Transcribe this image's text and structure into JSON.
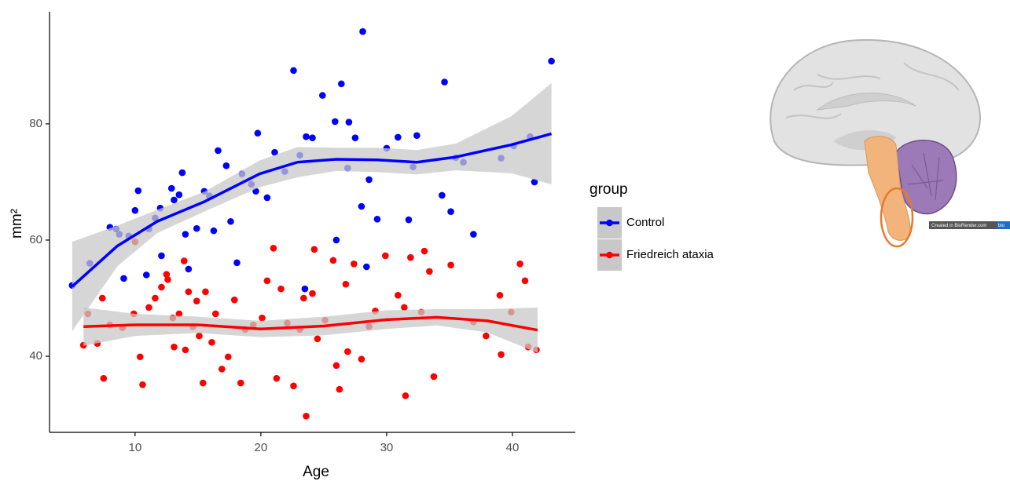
{
  "chart_data": {
    "type": "scatter",
    "x_label": "Age",
    "y_label": "mm²",
    "legend_title": "group",
    "xlim": [
      3.2,
      45
    ],
    "ylim": [
      26.9,
      99.3
    ],
    "xticks": [
      10,
      20,
      30,
      40
    ],
    "yticks": [
      40,
      60,
      80
    ],
    "grid": false,
    "band_color": "#c8c8c8",
    "series": [
      {
        "name": "Control",
        "color": "#0000ff",
        "x": [
          5,
          6.4,
          8,
          8.5,
          8.75,
          9.1,
          9.5,
          10,
          10.25,
          10.9,
          11.1,
          11.6,
          12,
          12.1,
          12.9,
          13.1,
          13.5,
          13.75,
          14,
          14.25,
          14.9,
          15.5,
          15.9,
          16.25,
          16.6,
          17.25,
          17.6,
          18.1,
          18.5,
          19.25,
          19.75,
          19.6,
          20.5,
          21.1,
          21.9,
          22.6,
          23.1,
          23.5,
          23.6,
          24.1,
          24.9,
          25.9,
          26,
          26.4,
          26.9,
          27,
          27.5,
          28.1,
          28.4,
          28,
          28.6,
          29.25,
          30,
          30.9,
          31.75,
          32.4,
          32.1,
          34.4,
          34.6,
          35.1,
          35.5,
          36.1,
          36.9,
          39.1,
          40.1,
          41.4,
          41.75,
          43.1
        ],
        "values": [
          52.2,
          56,
          62.2,
          61.9,
          61,
          53.4,
          60.7,
          65.1,
          68.5,
          54,
          61.9,
          63.8,
          65.5,
          57.3,
          68.9,
          66.9,
          67.8,
          71.6,
          61,
          55,
          62,
          68.4,
          67.6,
          61.6,
          75.4,
          72.8,
          63.2,
          56.1,
          71.4,
          69.6,
          78.4,
          68.4,
          67.3,
          75.1,
          71.8,
          89.2,
          74.6,
          51.6,
          77.8,
          77.6,
          84.9,
          80.4,
          60,
          86.9,
          72.4,
          80.3,
          77.6,
          95.9,
          55.4,
          65.8,
          70.4,
          63.6,
          75.8,
          77.7,
          63.5,
          78,
          72.6,
          67.7,
          87.2,
          64.9,
          74.2,
          73.4,
          61,
          74.1,
          76.2,
          77.8,
          70,
          90.8
        ],
        "fit": {
          "x": [
            5,
            8.6,
            11.75,
            15.5,
            19.9,
            22.9,
            26,
            29.25,
            32.4,
            35.5,
            39.9,
            43.1
          ],
          "values": [
            52,
            59,
            63.2,
            66.6,
            71.4,
            73.4,
            73.9,
            73.8,
            73.4,
            74.3,
            76.4,
            78.3
          ],
          "lower": [
            44.3,
            55.5,
            61.2,
            64.9,
            69.1,
            70.8,
            71.9,
            71.7,
            71.3,
            72,
            71.5,
            69.6
          ],
          "upper": [
            59.7,
            62.5,
            65.2,
            68.3,
            73.7,
            76,
            75.9,
            75.9,
            75.5,
            76.6,
            81.3,
            87
          ]
        }
      },
      {
        "name": "Friedreich ataxia",
        "color": "#ff0000",
        "x": [
          5.9,
          6.25,
          7,
          7.4,
          7.5,
          8,
          9,
          9.9,
          10,
          10.4,
          10.6,
          11.1,
          11.6,
          12.1,
          12.5,
          12.6,
          13,
          13.1,
          13.5,
          13.9,
          14,
          14.25,
          14.6,
          14.9,
          15.1,
          15.4,
          15.6,
          16.1,
          16.4,
          16.9,
          17.4,
          17.9,
          18.4,
          18.75,
          19.4,
          20.1,
          20.5,
          21,
          21.25,
          21.6,
          22.1,
          22.6,
          23.1,
          23.4,
          23.6,
          24.1,
          24.25,
          24.5,
          25.1,
          25.75,
          26,
          26.25,
          26.75,
          26.9,
          27.4,
          28,
          28.6,
          29.1,
          29.9,
          30.9,
          31.4,
          31.5,
          31.9,
          32.75,
          33,
          33.4,
          33.75,
          35.1,
          36.9,
          37.9,
          39,
          39.1,
          39.9,
          40.6,
          41,
          41.25,
          41.9
        ],
        "values": [
          41.9,
          47.3,
          42.2,
          50,
          36.2,
          45.4,
          44.9,
          47.3,
          59.7,
          39.9,
          35.1,
          48.4,
          50,
          51.9,
          54.1,
          53.2,
          46.6,
          41.6,
          47.3,
          56.4,
          41.1,
          51.1,
          45.1,
          49.5,
          43.5,
          35.4,
          51.1,
          42.4,
          47.3,
          37.8,
          39.9,
          49.7,
          35.4,
          44.6,
          45.4,
          46.6,
          53,
          58.6,
          36.2,
          51.6,
          45.7,
          34.9,
          44.6,
          50,
          29.7,
          50.8,
          58.4,
          43,
          46.2,
          56.5,
          38.4,
          34.3,
          52.4,
          40.8,
          55.9,
          39.5,
          45.1,
          47.8,
          57.3,
          50.5,
          48.4,
          33.2,
          57,
          47.6,
          58.1,
          54.6,
          36.5,
          55.7,
          45.9,
          43.5,
          50.5,
          40.3,
          47.6,
          55.9,
          53,
          41.6,
          41.1
        ],
        "fit": {
          "x": [
            5.9,
            10,
            15,
            20,
            25,
            30,
            34,
            38,
            42
          ],
          "values": [
            45.1,
            45.4,
            45.4,
            44.7,
            45.2,
            46.3,
            46.7,
            46.1,
            44.5
          ],
          "lower": [
            41.8,
            43.5,
            44,
            43.3,
            43.6,
            44.7,
            45.3,
            44.1,
            40.6
          ],
          "upper": [
            48.4,
            47.3,
            46.8,
            46.1,
            46.8,
            47.9,
            48.1,
            48.1,
            48.4
          ]
        }
      }
    ]
  },
  "illustration": {
    "watermark": "Created in BioRender.com",
    "badge": "bio"
  }
}
